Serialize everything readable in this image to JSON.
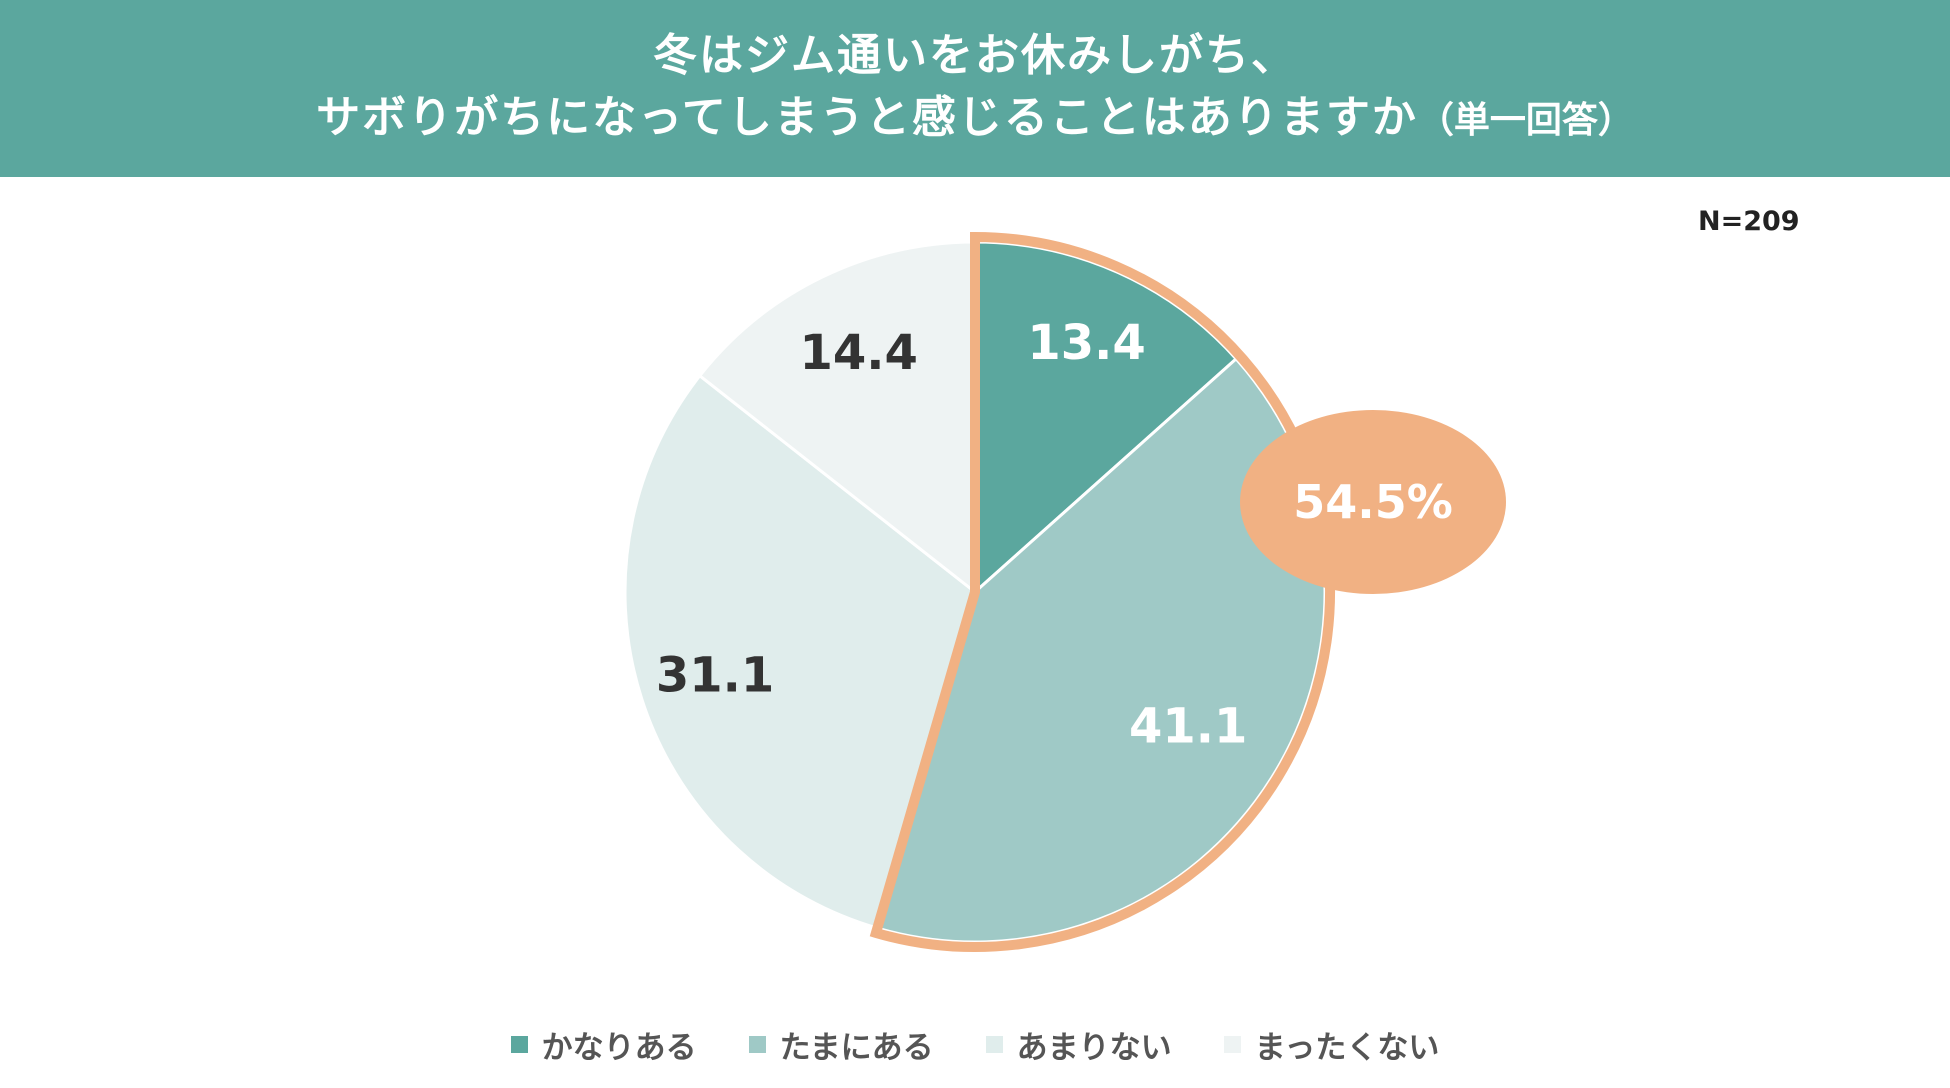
{
  "title": {
    "line1": "冬はジム通いをお休みしがち、",
    "line2": "サボりがちになってしまうと感じることはありますか",
    "note": "（単一回答）"
  },
  "sample_size": "N=209",
  "callout": "54.5%",
  "colors": {
    "header": "#5ba79e",
    "highlight": "#f1b183"
  },
  "chart_data": {
    "type": "pie",
    "title": "冬はジム通いをお休みしがち、サボりがちになってしまうと感じることはありますか（単一回答）",
    "start_angle_deg": 0,
    "direction": "clockwise",
    "legend_position": "bottom",
    "slices": [
      {
        "label": "かなりある",
        "value": 13.4,
        "display": "13.4",
        "color": "#5ba79e",
        "label_color": "#ffffff"
      },
      {
        "label": "たまにある",
        "value": 41.1,
        "display": "41.1",
        "color": "#9fc9c6",
        "label_color": "#ffffff"
      },
      {
        "label": "あまりない",
        "value": 31.1,
        "display": "31.1",
        "color": "#e0edec",
        "label_color": "#333333"
      },
      {
        "label": "まったくない",
        "value": 14.4,
        "display": "14.4",
        "color": "#eef3f3",
        "label_color": "#333333"
      }
    ],
    "highlight": {
      "slices": [
        "かなりある",
        "たまにある"
      ],
      "total": "54.5%"
    }
  }
}
